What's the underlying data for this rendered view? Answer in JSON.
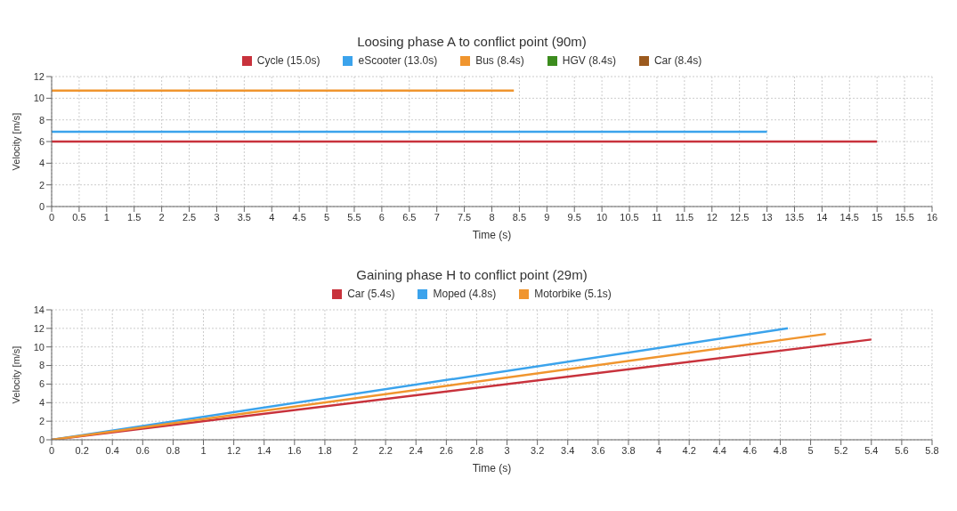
{
  "chart_data": [
    {
      "type": "line",
      "title": "Loosing phase A to conflict point (90m)",
      "xlabel": "Time (s)",
      "ylabel": "Velocity [m/s]",
      "xlim": [
        0,
        16
      ],
      "xticks": [
        0,
        0.5,
        1,
        1.5,
        2,
        2.5,
        3,
        3.5,
        4,
        4.5,
        5,
        5.5,
        6,
        6.5,
        7,
        7.5,
        8,
        8.5,
        9,
        9.5,
        10,
        10.5,
        11,
        11.5,
        12,
        12.5,
        13,
        13.5,
        14,
        14.5,
        15,
        15.5,
        16
      ],
      "ylim": [
        0,
        12
      ],
      "yticks": [
        0,
        2,
        4,
        6,
        8,
        10,
        12
      ],
      "grid": true,
      "legend": "top",
      "marker": "none",
      "line_style": "solid",
      "series": [
        {
          "name": "Cycle (15.0s)",
          "color": "#c8323c",
          "x": [
            0,
            15
          ],
          "values": [
            6,
            6
          ]
        },
        {
          "name": "eScooter (13.0s)",
          "color": "#3ba3ec",
          "x": [
            0,
            13
          ],
          "values": [
            6.9,
            6.9
          ]
        },
        {
          "name": "Bus (8.4s)",
          "color": "#f0952e",
          "x": [
            0,
            8.4
          ],
          "values": [
            10.7,
            10.7
          ]
        },
        {
          "name": "HGV (8.4s)",
          "color": "#3c8c1e"
        },
        {
          "name": "Car (8.4s)",
          "color": "#9c5a1e"
        }
      ]
    },
    {
      "type": "line",
      "title": "Gaining phase H to conflict point (29m)",
      "xlabel": "Time (s)",
      "ylabel": "Velocity [m/s]",
      "xlim": [
        0,
        5.8
      ],
      "xticks": [
        0,
        0.2,
        0.4,
        0.6,
        0.8,
        1,
        1.2,
        1.4,
        1.6,
        1.8,
        2,
        2.2,
        2.4,
        2.6,
        2.8,
        3,
        3.2,
        3.4,
        3.6,
        3.8,
        4,
        4.2,
        4.4,
        4.6,
        4.8,
        5,
        5.2,
        5.4,
        5.6,
        5.8
      ],
      "ylim": [
        0,
        14
      ],
      "yticks": [
        0,
        2,
        4,
        6,
        8,
        10,
        12,
        14
      ],
      "grid": true,
      "legend": "top",
      "marker": "none",
      "line_style": "solid",
      "series": [
        {
          "name": "Car (5.4s)",
          "color": "#c8323c",
          "x": [
            0,
            5.4
          ],
          "values": [
            0,
            10.8
          ]
        },
        {
          "name": "Moped (4.8s)",
          "color": "#3ba3ec",
          "x": [
            0,
            4.85
          ],
          "values": [
            0,
            12
          ]
        },
        {
          "name": "Motorbike (5.1s)",
          "color": "#f0952e",
          "x": [
            0,
            5.1
          ],
          "values": [
            0,
            11.4
          ]
        }
      ]
    }
  ]
}
